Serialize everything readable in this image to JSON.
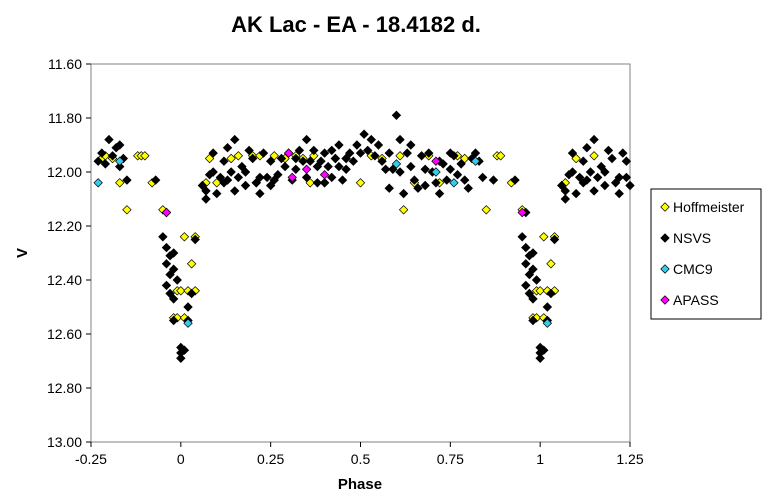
{
  "chart_data": {
    "type": "scatter",
    "title": "AK Lac - EA - 18.4182 d.",
    "xlabel": "Phase",
    "ylabel": "V",
    "xlim": [
      -0.25,
      1.25
    ],
    "ylim": [
      11.6,
      13.0
    ],
    "y_inverted": true,
    "grid": false,
    "legend_position": "right",
    "xticks": [
      "-0.25",
      "0",
      "0.25",
      "0.5",
      "0.75",
      "1",
      "1.25"
    ],
    "yticks": [
      "11.60",
      "11.80",
      "12.00",
      "12.20",
      "12.40",
      "12.60",
      "12.80",
      "13.00"
    ],
    "series": [
      {
        "name": "Hoffmeister",
        "color": "#ffff00",
        "points": [
          [
            -0.22,
            11.95
          ],
          [
            -0.21,
            11.94
          ],
          [
            -0.19,
            11.95
          ],
          [
            -0.17,
            12.04
          ],
          [
            -0.15,
            12.14
          ],
          [
            -0.12,
            11.94
          ],
          [
            -0.11,
            11.94
          ],
          [
            -0.1,
            11.94
          ],
          [
            -0.08,
            12.04
          ],
          [
            -0.05,
            12.14
          ],
          [
            -0.01,
            12.44
          ],
          [
            0.0,
            12.44
          ],
          [
            0.01,
            12.24
          ],
          [
            0.02,
            12.44
          ],
          [
            0.03,
            12.34
          ],
          [
            0.04,
            12.44
          ],
          [
            0.04,
            12.24
          ],
          [
            -0.02,
            12.54
          ],
          [
            -0.01,
            12.54
          ],
          [
            0.01,
            12.54
          ],
          [
            0.07,
            12.04
          ],
          [
            0.08,
            11.95
          ],
          [
            0.1,
            12.04
          ],
          [
            0.14,
            11.95
          ],
          [
            0.16,
            11.94
          ],
          [
            0.2,
            11.94
          ],
          [
            0.21,
            12.04
          ],
          [
            0.22,
            11.94
          ],
          [
            0.26,
            11.94
          ],
          [
            0.29,
            11.95
          ],
          [
            0.32,
            11.94
          ],
          [
            0.34,
            11.95
          ],
          [
            0.36,
            12.04
          ],
          [
            0.37,
            11.94
          ],
          [
            0.4,
            12.04
          ],
          [
            0.43,
            11.95
          ],
          [
            0.46,
            11.95
          ],
          [
            0.5,
            12.04
          ],
          [
            0.53,
            11.94
          ],
          [
            0.56,
            11.95
          ],
          [
            0.61,
            11.94
          ],
          [
            0.62,
            12.14
          ],
          [
            0.65,
            12.04
          ],
          [
            0.69,
            11.94
          ],
          [
            0.72,
            12.04
          ],
          [
            0.77,
            11.94
          ],
          [
            0.79,
            11.95
          ],
          [
            0.85,
            12.14
          ],
          [
            0.88,
            11.94
          ],
          [
            0.89,
            11.94
          ],
          [
            0.92,
            12.04
          ],
          [
            0.95,
            12.14
          ],
          [
            0.99,
            12.44
          ],
          [
            1.0,
            12.44
          ],
          [
            1.01,
            12.24
          ],
          [
            1.02,
            12.44
          ],
          [
            1.03,
            12.34
          ],
          [
            1.04,
            12.44
          ],
          [
            1.04,
            12.24
          ],
          [
            0.98,
            12.54
          ],
          [
            0.99,
            12.54
          ],
          [
            1.01,
            12.54
          ],
          [
            1.07,
            12.04
          ],
          [
            1.1,
            11.95
          ],
          [
            1.15,
            11.94
          ]
        ]
      },
      {
        "name": "NSVS",
        "color": "#000000",
        "points": [
          [
            -0.23,
            11.96
          ],
          [
            -0.22,
            11.93
          ],
          [
            -0.21,
            11.97
          ],
          [
            -0.2,
            11.88
          ],
          [
            -0.19,
            11.94
          ],
          [
            -0.18,
            11.91
          ],
          [
            -0.17,
            11.9
          ],
          [
            -0.17,
            11.98
          ],
          [
            -0.16,
            11.95
          ],
          [
            -0.15,
            12.03
          ],
          [
            -0.07,
            12.03
          ],
          [
            -0.04,
            12.15
          ],
          [
            -0.05,
            12.24
          ],
          [
            -0.04,
            12.28
          ],
          [
            -0.03,
            12.31
          ],
          [
            -0.04,
            12.34
          ],
          [
            -0.03,
            12.38
          ],
          [
            -0.04,
            12.42
          ],
          [
            -0.02,
            12.3
          ],
          [
            -0.02,
            12.36
          ],
          [
            -0.03,
            12.45
          ],
          [
            -0.02,
            12.47
          ],
          [
            -0.01,
            12.4
          ],
          [
            -0.02,
            12.55
          ],
          [
            0.0,
            12.65
          ],
          [
            0.01,
            12.66
          ],
          [
            0.0,
            12.69
          ],
          [
            0.0,
            12.67
          ],
          [
            0.02,
            12.5
          ],
          [
            0.02,
            12.55
          ],
          [
            0.03,
            12.45
          ],
          [
            0.04,
            12.25
          ],
          [
            0.06,
            12.05
          ],
          [
            0.07,
            12.07
          ],
          [
            0.07,
            12.1
          ],
          [
            0.08,
            12.01
          ],
          [
            0.09,
            11.93
          ],
          [
            0.09,
            12.0
          ],
          [
            0.1,
            12.08
          ],
          [
            0.11,
            12.02
          ],
          [
            0.12,
            11.96
          ],
          [
            0.12,
            12.04
          ],
          [
            0.13,
            11.91
          ],
          [
            0.13,
            12.03
          ],
          [
            0.14,
            12.0
          ],
          [
            0.15,
            12.07
          ],
          [
            0.15,
            11.88
          ],
          [
            0.16,
            12.02
          ],
          [
            0.17,
            11.98
          ],
          [
            0.18,
            12.05
          ],
          [
            0.18,
            12.0
          ],
          [
            0.19,
            11.92
          ],
          [
            0.2,
            11.95
          ],
          [
            0.21,
            12.04
          ],
          [
            0.22,
            12.02
          ],
          [
            0.22,
            12.08
          ],
          [
            0.23,
            11.93
          ],
          [
            0.24,
            12.02
          ],
          [
            0.25,
            12.05
          ],
          [
            0.25,
            11.96
          ],
          [
            0.26,
            12.03
          ],
          [
            0.27,
            12.01
          ],
          [
            0.28,
            11.95
          ],
          [
            0.29,
            11.98
          ],
          [
            0.3,
            11.93
          ],
          [
            0.31,
            12.03
          ],
          [
            0.32,
            11.95
          ],
          [
            0.32,
            11.99
          ],
          [
            0.33,
            11.92
          ],
          [
            0.34,
            11.96
          ],
          [
            0.35,
            12.02
          ],
          [
            0.35,
            11.88
          ],
          [
            0.36,
            11.96
          ],
          [
            0.37,
            11.92
          ],
          [
            0.38,
            12.04
          ],
          [
            0.38,
            11.98
          ],
          [
            0.39,
            11.96
          ],
          [
            0.4,
            11.93
          ],
          [
            0.4,
            12.04
          ],
          [
            0.41,
            11.98
          ],
          [
            0.42,
            11.92
          ],
          [
            0.42,
            12.02
          ],
          [
            0.43,
            11.95
          ],
          [
            0.44,
            11.9
          ],
          [
            0.44,
            11.98
          ],
          [
            0.45,
            12.03
          ],
          [
            0.46,
            11.95
          ],
          [
            0.46,
            11.99
          ],
          [
            0.47,
            11.93
          ],
          [
            0.48,
            11.96
          ],
          [
            0.49,
            11.9
          ],
          [
            0.5,
            11.93
          ],
          [
            0.51,
            11.86
          ],
          [
            0.52,
            11.92
          ],
          [
            0.53,
            11.88
          ],
          [
            0.54,
            11.94
          ],
          [
            0.55,
            11.9
          ],
          [
            0.56,
            11.96
          ],
          [
            0.57,
            11.99
          ],
          [
            0.58,
            11.93
          ],
          [
            0.58,
            12.06
          ],
          [
            0.59,
            11.99
          ],
          [
            0.6,
            11.79
          ],
          [
            0.61,
            11.88
          ],
          [
            0.61,
            12.0
          ],
          [
            0.62,
            12.08
          ],
          [
            0.63,
            11.93
          ],
          [
            0.64,
            11.98
          ],
          [
            0.64,
            11.9
          ],
          [
            0.65,
            12.03
          ],
          [
            0.66,
            12.06
          ],
          [
            0.67,
            11.94
          ],
          [
            0.68,
            11.99
          ],
          [
            0.68,
            12.05
          ],
          [
            0.69,
            11.93
          ],
          [
            0.7,
            12.0
          ],
          [
            0.71,
            12.04
          ],
          [
            0.72,
            11.96
          ],
          [
            0.72,
            12.08
          ],
          [
            0.73,
            11.97
          ],
          [
            0.74,
            12.03
          ],
          [
            0.75,
            11.99
          ],
          [
            0.75,
            11.93
          ],
          [
            0.76,
            11.94
          ],
          [
            0.77,
            12.01
          ],
          [
            0.78,
            11.97
          ],
          [
            0.79,
            12.03
          ],
          [
            0.8,
            12.06
          ],
          [
            0.81,
            11.95
          ],
          [
            0.82,
            11.93
          ],
          [
            0.83,
            11.96
          ],
          [
            0.84,
            12.02
          ],
          [
            0.87,
            12.03
          ],
          [
            0.93,
            12.03
          ],
          [
            0.96,
            12.15
          ],
          [
            0.95,
            12.24
          ],
          [
            0.96,
            12.28
          ],
          [
            0.97,
            12.31
          ],
          [
            0.96,
            12.34
          ],
          [
            0.97,
            12.38
          ],
          [
            0.96,
            12.42
          ],
          [
            0.98,
            12.3
          ],
          [
            0.98,
            12.36
          ],
          [
            0.97,
            12.45
          ],
          [
            0.98,
            12.47
          ],
          [
            0.99,
            12.4
          ],
          [
            0.98,
            12.55
          ],
          [
            1.0,
            12.65
          ],
          [
            1.01,
            12.66
          ],
          [
            1.0,
            12.69
          ],
          [
            1.0,
            12.67
          ],
          [
            1.02,
            12.5
          ],
          [
            1.02,
            12.55
          ],
          [
            1.03,
            12.45
          ],
          [
            1.04,
            12.25
          ],
          [
            1.06,
            12.05
          ],
          [
            1.07,
            12.07
          ],
          [
            1.07,
            12.1
          ],
          [
            1.08,
            12.01
          ],
          [
            1.09,
            11.93
          ],
          [
            1.09,
            12.0
          ],
          [
            1.1,
            12.08
          ],
          [
            1.11,
            12.02
          ],
          [
            1.12,
            11.96
          ],
          [
            1.12,
            12.04
          ],
          [
            1.13,
            11.91
          ],
          [
            1.13,
            12.03
          ],
          [
            1.14,
            12.0
          ],
          [
            1.15,
            12.07
          ],
          [
            1.15,
            11.88
          ],
          [
            1.16,
            12.02
          ],
          [
            1.17,
            11.98
          ],
          [
            1.18,
            12.05
          ],
          [
            1.18,
            12.0
          ],
          [
            1.19,
            11.92
          ],
          [
            1.2,
            11.95
          ],
          [
            1.21,
            12.04
          ],
          [
            1.22,
            12.02
          ],
          [
            1.22,
            12.08
          ],
          [
            1.23,
            11.93
          ],
          [
            1.24,
            12.02
          ],
          [
            1.25,
            12.05
          ],
          [
            1.24,
            11.96
          ]
        ]
      },
      {
        "name": "CMC9",
        "color": "#33ccee",
        "points": [
          [
            -0.23,
            12.04
          ],
          [
            -0.17,
            11.96
          ],
          [
            0.02,
            12.56
          ],
          [
            0.6,
            11.97
          ],
          [
            0.71,
            12.0
          ],
          [
            0.76,
            12.04
          ],
          [
            0.82,
            11.96
          ],
          [
            1.02,
            12.56
          ]
        ]
      },
      {
        "name": "APASS",
        "color": "#ff00ff",
        "points": [
          [
            -0.04,
            12.15
          ],
          [
            0.3,
            11.93
          ],
          [
            0.31,
            12.02
          ],
          [
            0.35,
            11.99
          ],
          [
            0.4,
            12.01
          ],
          [
            0.71,
            11.96
          ],
          [
            0.95,
            12.15
          ]
        ]
      }
    ]
  }
}
